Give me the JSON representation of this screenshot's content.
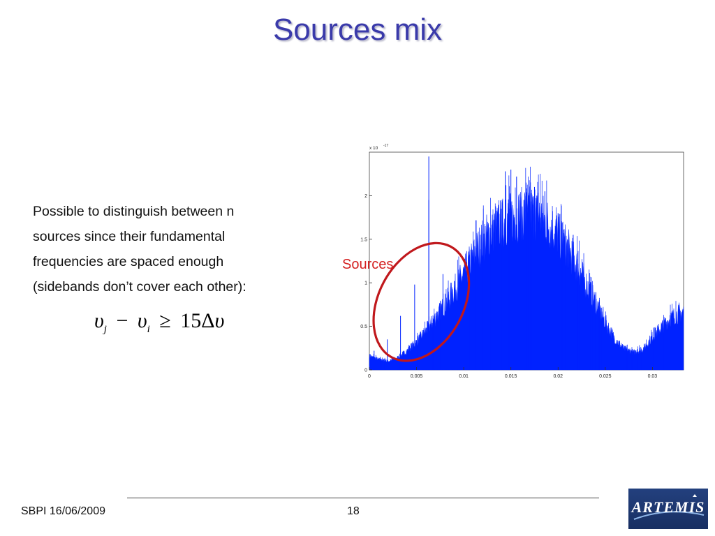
{
  "slide": {
    "title": "Sources mix",
    "body_lines": [
      "Possible to distinguish between n",
      "sources since their fundamental",
      "frequencies are spaced enough",
      "(sidebands don’t cover each other):"
    ],
    "formula": {
      "symbol": "υ",
      "sub_j": "j",
      "minus": "−",
      "sub_i": "i",
      "geq": "≥",
      "coef": "15",
      "delta": "Δ"
    },
    "annotation": "Sources",
    "footer_left": "SBPI 16/06/2009",
    "page_number": "18",
    "logo_text": "ARTEMIS"
  },
  "colors": {
    "title": "#3a3aaa",
    "spectrum": "#0022ff",
    "annotation": "#d42020"
  },
  "chart_data": {
    "type": "area",
    "title": "",
    "xlabel": "",
    "ylabel": "",
    "exponent_label": "x 10",
    "exponent_power": "-17",
    "xlim": [
      0,
      0.0333
    ],
    "ylim": [
      0,
      2.5
    ],
    "x_ticks": [
      0,
      0.005,
      0.01,
      0.015,
      0.02,
      0.025,
      0.03
    ],
    "x_tick_labels": [
      "0",
      "0.005",
      "0.01",
      "0.015",
      "0.02",
      "0.025",
      "0.03"
    ],
    "y_ticks": [
      0,
      0.5,
      1,
      1.5,
      2
    ],
    "y_tick_labels": [
      "0",
      "0.5",
      "1",
      "1.5",
      "2"
    ],
    "envelope": [
      [
        0.0,
        0.16
      ],
      [
        0.001,
        0.12
      ],
      [
        0.002,
        0.1
      ],
      [
        0.003,
        0.14
      ],
      [
        0.004,
        0.22
      ],
      [
        0.005,
        0.32
      ],
      [
        0.006,
        0.45
      ],
      [
        0.007,
        0.6
      ],
      [
        0.008,
        0.75
      ],
      [
        0.009,
        0.92
      ],
      [
        0.01,
        1.1
      ],
      [
        0.011,
        1.3
      ],
      [
        0.012,
        1.48
      ],
      [
        0.013,
        1.6
      ],
      [
        0.014,
        1.68
      ],
      [
        0.015,
        1.74
      ],
      [
        0.016,
        1.78
      ],
      [
        0.017,
        1.8
      ],
      [
        0.018,
        1.76
      ],
      [
        0.019,
        1.68
      ],
      [
        0.02,
        1.55
      ],
      [
        0.021,
        1.4
      ],
      [
        0.022,
        1.2
      ],
      [
        0.023,
        0.98
      ],
      [
        0.024,
        0.76
      ],
      [
        0.025,
        0.55
      ],
      [
        0.026,
        0.36
      ],
      [
        0.027,
        0.24
      ],
      [
        0.028,
        0.2
      ],
      [
        0.029,
        0.24
      ],
      [
        0.03,
        0.38
      ],
      [
        0.031,
        0.5
      ],
      [
        0.032,
        0.6
      ],
      [
        0.0333,
        0.67
      ]
    ],
    "peaks": [
      [
        0.0005,
        0.22
      ],
      [
        0.0019,
        0.35
      ],
      [
        0.0033,
        0.62
      ],
      [
        0.0048,
        0.98
      ],
      [
        0.0063,
        2.45
      ],
      [
        0.0063,
        1.95
      ],
      [
        0.0078,
        1.1
      ],
      [
        0.009,
        1.02
      ],
      [
        0.0144,
        2.28
      ],
      [
        0.015,
        2.3
      ],
      [
        0.0156,
        2.22
      ],
      [
        0.0166,
        2.15
      ],
      [
        0.0175,
        2.1
      ],
      [
        0.0186,
        2.05
      ],
      [
        0.02,
        1.8
      ],
      [
        0.0216,
        1.55
      ]
    ],
    "annotation": {
      "text": "Sources",
      "ellipse_center": [
        0.0055,
        0.78
      ],
      "ellipse_rx": 0.0045,
      "ellipse_ry": 0.72
    }
  }
}
